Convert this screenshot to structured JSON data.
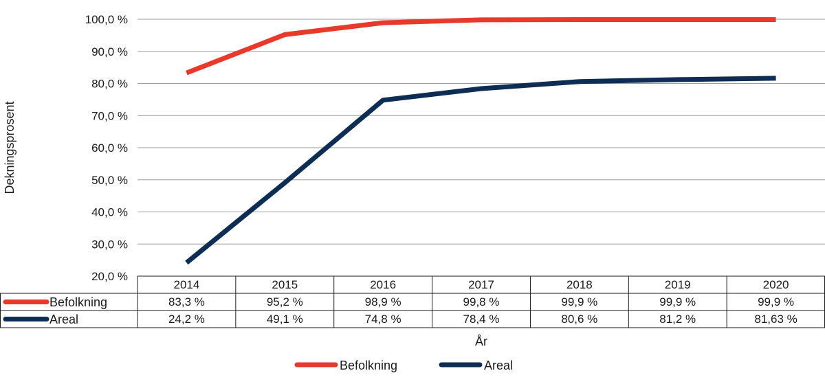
{
  "chart_data": {
    "type": "line",
    "ylabel": "Dekningsprosent",
    "xlabel": "År",
    "categories": [
      "2014",
      "2015",
      "2016",
      "2017",
      "2018",
      "2019",
      "2020"
    ],
    "ylim": [
      20,
      100
    ],
    "yticks": [
      "20,0 %",
      "30,0 %",
      "40,0 %",
      "50,0 %",
      "60,0 %",
      "70,0 %",
      "80,0 %",
      "90,0 %",
      "100,0 %"
    ],
    "grid": true,
    "legend_position": "bottom",
    "series": [
      {
        "name": "Befolkning",
        "color": "#e8392a",
        "values": [
          83.3,
          95.2,
          98.9,
          99.8,
          99.9,
          99.9,
          99.9
        ],
        "labels": [
          "83,3 %",
          "95,2 %",
          "98,9 %",
          "99,8 %",
          "99,9 %",
          "99,9 %",
          "99,9 %"
        ]
      },
      {
        "name": "Areal",
        "color": "#0d2d55",
        "values": [
          24.2,
          49.1,
          74.8,
          78.4,
          80.6,
          81.2,
          81.63
        ],
        "labels": [
          "24,2 %",
          "49,1 %",
          "74,8 %",
          "78,4 %",
          "80,6 %",
          "81,2 %",
          "81,63 %"
        ]
      }
    ]
  }
}
